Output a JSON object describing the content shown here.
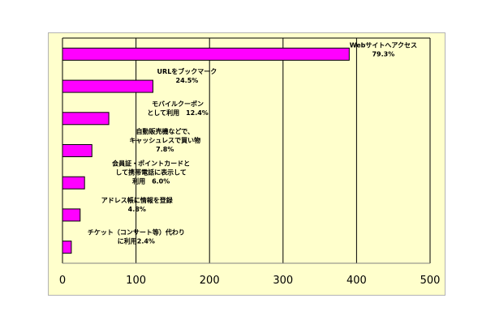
{
  "chart_data": {
    "type": "bar",
    "orientation": "horizontal",
    "categories": [
      "Webサイトへアクセス",
      "URLをブックマーク",
      "モバイルクーポンとして利用",
      "自動販売機などで、キャッシュレスで買い物",
      "会員証・ポイントカードとして携帯電話に表示して利用",
      "アドレス帳に情報を登録",
      "チケット（コンサート等）代わりに利用"
    ],
    "values": [
      390,
      123,
      63,
      40,
      30,
      24,
      12
    ],
    "labels": [
      [
        "Webサイトへアクセス",
        "79.3%"
      ],
      [
        "URLをブックマーク",
        "24.5%"
      ],
      [
        "モバイルクーポン",
        "として利用　12.4%"
      ],
      [
        "自動販売機などで、",
        "キャッシュレスで買い物",
        "7.8%"
      ],
      [
        "会員証・ポイントカードと",
        "して携帯電話に表示して",
        "利用　6.0%"
      ],
      [
        "アドレス帳に情報を登録",
        "4.8%"
      ],
      [
        "チケット（コンサート等）代わり",
        "に利用2.4%"
      ]
    ],
    "xlim": [
      0,
      500
    ],
    "xticks": [
      "0",
      "100",
      "200",
      "300",
      "400",
      "500"
    ],
    "grid": true,
    "title": "",
    "xlabel": "",
    "ylabel": "",
    "colors": {
      "bar": "#ff00ff",
      "bar_edge": "#000000",
      "background": "#ffffcc",
      "grid": "#000000"
    }
  }
}
